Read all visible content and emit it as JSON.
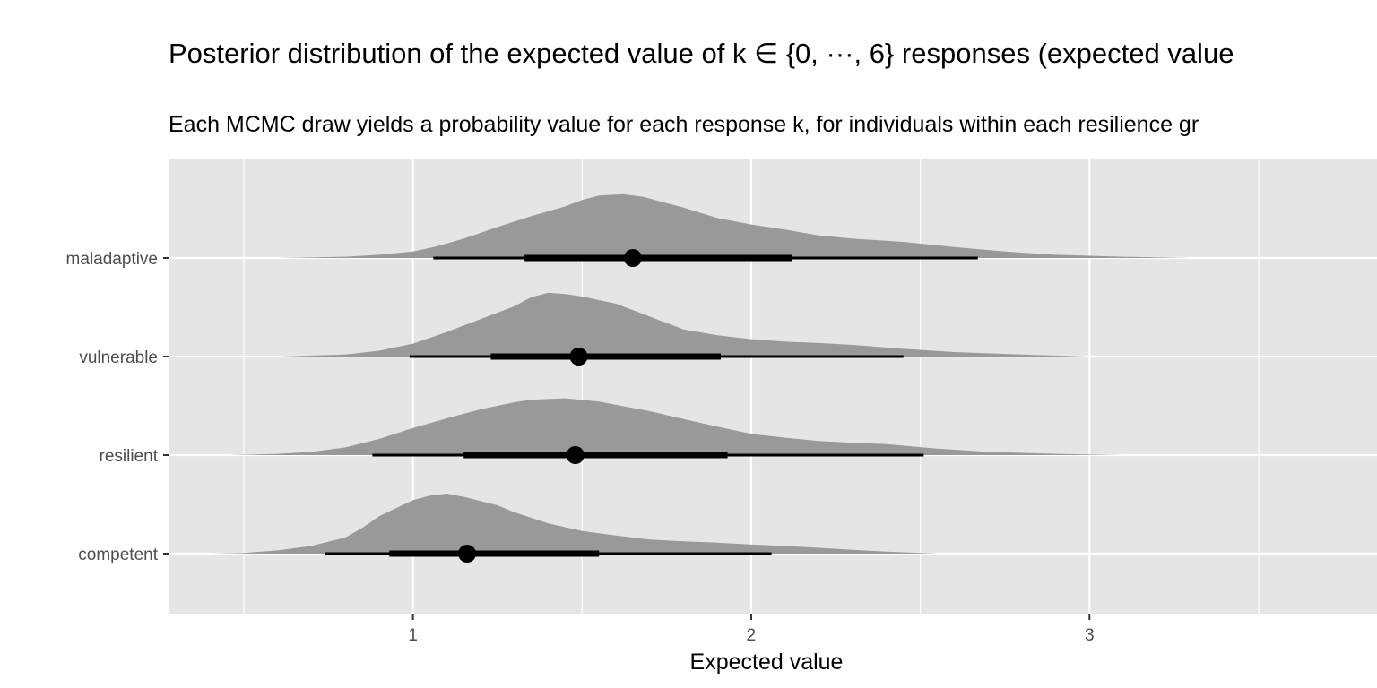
{
  "chart_data": {
    "type": "area",
    "title": "Posterior distribution of the expected value of k ∈ {0, ···, 6} responses (expected value",
    "subtitle": "Each MCMC draw yields a probability value for each response k, for individuals within each resilience gr",
    "xlabel": "Expected value",
    "ylabel": "",
    "xlim": [
      0.28,
      3.85
    ],
    "x_ticks": [
      1,
      2,
      3
    ],
    "grid": true,
    "legend": "none",
    "colors": {
      "panel": "#e5e5e5",
      "grid": "#ffffff",
      "density": "#999999",
      "interval": "#000000"
    },
    "groups": [
      "maladaptive",
      "vulnerable",
      "resilient",
      "competent"
    ],
    "series": [
      {
        "name": "maladaptive",
        "point": 1.65,
        "interval_66": [
          1.33,
          2.12
        ],
        "interval_95": [
          1.06,
          2.67
        ],
        "density": [
          [
            0.6,
            0
          ],
          [
            0.8,
            0.02
          ],
          [
            0.9,
            0.05
          ],
          [
            1.0,
            0.1
          ],
          [
            1.07,
            0.18
          ],
          [
            1.15,
            0.3
          ],
          [
            1.25,
            0.48
          ],
          [
            1.35,
            0.65
          ],
          [
            1.45,
            0.8
          ],
          [
            1.5,
            0.9
          ],
          [
            1.55,
            0.97
          ],
          [
            1.62,
            0.99
          ],
          [
            1.68,
            0.95
          ],
          [
            1.8,
            0.78
          ],
          [
            1.9,
            0.62
          ],
          [
            2.0,
            0.52
          ],
          [
            2.1,
            0.44
          ],
          [
            2.2,
            0.35
          ],
          [
            2.3,
            0.3
          ],
          [
            2.45,
            0.25
          ],
          [
            2.6,
            0.17
          ],
          [
            2.75,
            0.1
          ],
          [
            2.9,
            0.05
          ],
          [
            3.1,
            0.02
          ],
          [
            3.3,
            0
          ]
        ]
      },
      {
        "name": "vulnerable",
        "point": 1.49,
        "interval_66": [
          1.23,
          1.91
        ],
        "interval_95": [
          0.99,
          2.45
        ],
        "density": [
          [
            0.6,
            0
          ],
          [
            0.8,
            0.03
          ],
          [
            0.9,
            0.09
          ],
          [
            1.0,
            0.2
          ],
          [
            1.1,
            0.38
          ],
          [
            1.2,
            0.58
          ],
          [
            1.3,
            0.78
          ],
          [
            1.35,
            0.92
          ],
          [
            1.4,
            0.99
          ],
          [
            1.45,
            0.97
          ],
          [
            1.5,
            0.93
          ],
          [
            1.6,
            0.82
          ],
          [
            1.7,
            0.62
          ],
          [
            1.8,
            0.42
          ],
          [
            1.9,
            0.33
          ],
          [
            2.0,
            0.27
          ],
          [
            2.1,
            0.23
          ],
          [
            2.2,
            0.21
          ],
          [
            2.3,
            0.18
          ],
          [
            2.45,
            0.12
          ],
          [
            2.6,
            0.07
          ],
          [
            2.8,
            0.03
          ],
          [
            3.0,
            0
          ]
        ]
      },
      {
        "name": "resilient",
        "point": 1.48,
        "interval_66": [
          1.15,
          1.93
        ],
        "interval_95": [
          0.88,
          2.51
        ],
        "density": [
          [
            0.45,
            0
          ],
          [
            0.6,
            0.02
          ],
          [
            0.7,
            0.05
          ],
          [
            0.8,
            0.12
          ],
          [
            0.9,
            0.25
          ],
          [
            1.0,
            0.42
          ],
          [
            1.1,
            0.57
          ],
          [
            1.2,
            0.71
          ],
          [
            1.3,
            0.82
          ],
          [
            1.35,
            0.86
          ],
          [
            1.45,
            0.88
          ],
          [
            1.55,
            0.83
          ],
          [
            1.7,
            0.68
          ],
          [
            1.8,
            0.56
          ],
          [
            1.9,
            0.44
          ],
          [
            2.0,
            0.33
          ],
          [
            2.1,
            0.27
          ],
          [
            2.2,
            0.22
          ],
          [
            2.3,
            0.19
          ],
          [
            2.4,
            0.17
          ],
          [
            2.55,
            0.1
          ],
          [
            2.7,
            0.05
          ],
          [
            2.9,
            0.02
          ],
          [
            3.1,
            0
          ]
        ]
      },
      {
        "name": "competent",
        "point": 1.16,
        "interval_66": [
          0.93,
          1.55
        ],
        "interval_95": [
          0.74,
          2.06
        ],
        "density": [
          [
            0.4,
            0
          ],
          [
            0.5,
            0.01
          ],
          [
            0.6,
            0.05
          ],
          [
            0.7,
            0.12
          ],
          [
            0.8,
            0.25
          ],
          [
            0.85,
            0.4
          ],
          [
            0.9,
            0.58
          ],
          [
            1.0,
            0.83
          ],
          [
            1.05,
            0.9
          ],
          [
            1.1,
            0.93
          ],
          [
            1.15,
            0.88
          ],
          [
            1.25,
            0.75
          ],
          [
            1.3,
            0.64
          ],
          [
            1.4,
            0.47
          ],
          [
            1.5,
            0.35
          ],
          [
            1.6,
            0.28
          ],
          [
            1.7,
            0.22
          ],
          [
            1.8,
            0.19
          ],
          [
            1.9,
            0.17
          ],
          [
            2.0,
            0.14
          ],
          [
            2.1,
            0.12
          ],
          [
            2.2,
            0.09
          ],
          [
            2.3,
            0.06
          ],
          [
            2.4,
            0.03
          ],
          [
            2.55,
            0
          ]
        ]
      }
    ]
  }
}
